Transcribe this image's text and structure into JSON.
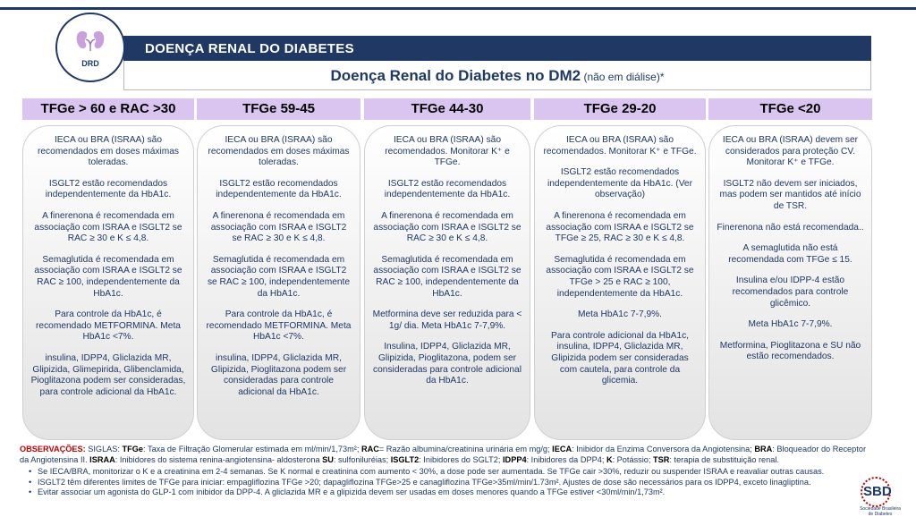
{
  "logo": {
    "text": "DRD",
    "icon": "kidney-icon"
  },
  "title": "DOENÇA RENAL DO DIABETES",
  "subtitle": {
    "main": "Doença Renal do Diabetes no DM2",
    "suffix": " (não em diálise)*"
  },
  "columns": [
    {
      "header": "TFGe > 60 e RAC >30",
      "paragraphs": [
        "IECA ou BRA (ISRAA) são recomendados em doses máximas toleradas.",
        "ISGLT2 estão recomendados independentemente da HbA1c.",
        "A finerenona é recomendada em associação com ISRAA e ISGLT2 se RAC ≥ 30 e K ≤ 4,8.",
        "Semaglutida é recomendada em associação com ISRAA e ISGLT2 se RAC ≥ 100, independentemente da HbA1c.",
        "Para controle da HbA1c, é recomendado METFORMINA. Meta HbA1c <7%.",
        "insulina, IDPP4, Gliclazida MR, Glipizida, Glimepirida, Glibenclamida, Pioglitazona podem ser consideradas, para controle adicional da HbA1c."
      ]
    },
    {
      "header": "TFGe 59-45",
      "paragraphs": [
        "IECA ou BRA (ISRAA) são recomendados em doses máximas toleradas.",
        "ISGLT2 estão recomendados independentemente da HbA1c.",
        "A finerenona é recomendada em associação com ISRAA e ISGLT2 se RAC ≥ 30 e K ≤ 4,8.",
        "Semaglutida é recomendada em associação com ISRAA e ISGLT2 se RAC ≥ 100, independentemente da HbA1c.",
        "Para controle da HbA1c, é recomendado METFORMINA. Meta HbA1c <7%.",
        "insulina, IDPP4, Gliclazida MR, Glipizida, Pioglitazona podem ser consideradas para controle adicional da HbA1c."
      ]
    },
    {
      "header": "TFGe 44-30",
      "paragraphs": [
        "IECA ou BRA (ISRAA) são recomendados. Monitorar K⁺ e TFGe.",
        "ISGLT2 estão recomendados independentemente da HbA1c.",
        "A finerenona é recomendada em associação com ISRAA e  ISGLT2 se RAC ≥ 30 e K ≤ 4,8.",
        "Semaglutida é recomendada em associação com ISRAA e ISGLT2 se RAC ≥ 100, independentemente da HbA1c.",
        "Metformina deve ser reduzida para < 1g/ dia. Meta HbA1c 7-7,9%.",
        "Insulina, IDPP4, Gliclazida MR, Glipizida, Pioglitazona, podem ser consideradas para controle adicional da HbA1c."
      ]
    },
    {
      "header": "TFGe 29-20",
      "paragraphs": [
        "IECA ou BRA (ISRAA) são recomendados. Monitorar K⁺ e TFGe.",
        "ISGLT2 estão recomendados independentemente da HbA1c. (Ver observação)",
        "A finerenona é recomendada em associação com ISRAA e  ISGLT2 se TFGe ≥ 25, RAC ≥ 30 e K ≤ 4,8.",
        "Semaglutida é recomendada em associação com ISRAA e ISGLT2 se TFGe > 25 e RAC ≥ 100, independentemente da HbA1c.",
        "Meta HbA1c 7-7,9%.",
        "Para controle adicional da HbA1c, insulina, IDPP4, Gliclazida MR, Glipizida podem ser consideradas com cautela, para controle da glicemia."
      ]
    },
    {
      "header": "TFGe <20",
      "paragraphs": [
        "IECA ou BRA (ISRAA) devem ser considerados para proteção CV. Monitorar K⁺ e TFGe.",
        "ISGLT2 não devem ser iniciados, mas podem ser mantidos até início de TSR.",
        "Finerenona não está recomendada..",
        "A semaglutida não está recomendada com TFGe ≤ 15.",
        "Insulina e/ou IDPP-4 estão recomendados para controle glicêmico.",
        "Meta HbA1c 7-7,9%.",
        "Metformina, Pioglitazona e SU não estão recomendados."
      ]
    }
  ],
  "observations": {
    "label": "OBSERVAÇÕES:",
    "siglas_prefix": " SIGLAS: ",
    "siglas": [
      {
        "term": "TFGe",
        "def": ": Taxa de Filtração Glomerular estimada em ml/min/1,73m²; "
      },
      {
        "term": "RAC",
        "def": "= Razão albumina/creatinina urinária em mg/g; "
      },
      {
        "term": "IECA",
        "def": ": Inibidor da Enzima Conversora da Angiotensina; "
      },
      {
        "term": "BRA",
        "def": ": Bloqueador do Receptor da Angiotensina II. "
      },
      {
        "term": "ISRAA",
        "def": ": Inibidores do sistema renina-angiotensina- aldosterona "
      },
      {
        "term": "SU",
        "def": ": sulfoniluréias; "
      },
      {
        "term": "ISGLT2",
        "def": ": Inibidores do SGLT2; "
      },
      {
        "term": "IDPP4",
        "def": ": Inibidores da DPP4; "
      },
      {
        "term": "K",
        "def": ": Potássio; "
      },
      {
        "term": "TSR",
        "def": ": terapia de substituição renal."
      }
    ],
    "bullets": [
      "Se IECA/BRA, monitorizar o K e a creatinina em 2-4 semanas. Se K normal e creatinina com aumento < 30%, a dose pode ser aumentada. Se TFGe cair >30%, reduzir ou suspender ISRAA e reavaliar outras causas.",
      "ISGLT2 têm diferentes limites de TFGe para iniciar: empagliflozina TFGe >20; dapagliflozina TFGe>25 e canagliflozina TFGe>35ml/min/1.73m². Ajustes de dose são necessários para os IDPP4, exceto linagliptina.",
      "Evitar associar um agonista do GLP-1 com inibidor da DPP-4. A gliclazida MR e a glipizida devem ser usadas em doses menores quando a TFGe estiver <30ml/min/1,73m²."
    ]
  },
  "sbd_logo": {
    "text": "SBD",
    "sub": "Sociedade Brasileira de Diabetes"
  }
}
